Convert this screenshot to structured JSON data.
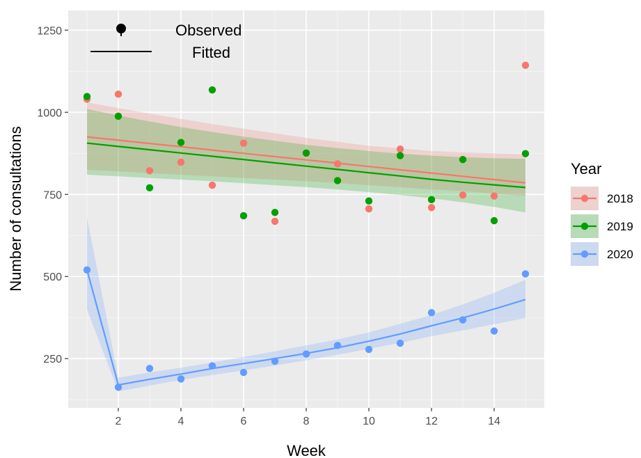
{
  "chart_data": {
    "type": "scatter",
    "xlabel": "Week",
    "ylabel": "Number of consultations",
    "xlim": [
      0.4,
      15.6
    ],
    "ylim": [
      100,
      1310
    ],
    "x_ticks": [
      2,
      4,
      6,
      8,
      10,
      12,
      14
    ],
    "y_ticks": [
      250,
      500,
      750,
      1000,
      1250
    ],
    "grid": true,
    "background": "#ebebeb",
    "legend": {
      "title": "Year",
      "position": "right",
      "entries": [
        "2018",
        "2019",
        "2020"
      ]
    },
    "inset_legend": {
      "position": "top-left",
      "observed_label": "Observed",
      "fitted_label": "Fitted"
    },
    "series": [
      {
        "name": "2018",
        "color": "#f8766d",
        "x": [
          1,
          2,
          3,
          4,
          5,
          6,
          7,
          8,
          9,
          10,
          11,
          12,
          13,
          14,
          15
        ],
        "observed": [
          1040,
          1055,
          822,
          848,
          778,
          906,
          668,
          875,
          843,
          706,
          888,
          710,
          748,
          745,
          1143
        ],
        "fitted": [
          925,
          915,
          905,
          895,
          885,
          875,
          865,
          855,
          845,
          835,
          825,
          815,
          805,
          795,
          785
        ],
        "lower": [
          825,
          820,
          815,
          810,
          805,
          800,
          795,
          790,
          785,
          778,
          772,
          765,
          760,
          752,
          745
        ],
        "upper": [
          1030,
          1013,
          996,
          980,
          964,
          950,
          936,
          922,
          910,
          898,
          890,
          882,
          878,
          875,
          872
        ]
      },
      {
        "name": "2019",
        "color": "#00a000",
        "x": [
          1,
          2,
          3,
          4,
          5,
          6,
          7,
          8,
          9,
          10,
          11,
          12,
          13,
          14,
          15
        ],
        "observed": [
          1048,
          988,
          770,
          908,
          1068,
          685,
          695,
          876,
          792,
          730,
          868,
          734,
          856,
          670,
          874
        ],
        "fitted": [
          906,
          896,
          886,
          876,
          866,
          856,
          846,
          836,
          826,
          816,
          806,
          796,
          787,
          779,
          771
        ],
        "lower": [
          810,
          805,
          800,
          795,
          790,
          784,
          778,
          772,
          765,
          757,
          748,
          738,
          726,
          712,
          695
        ],
        "upper": [
          1010,
          990,
          972,
          955,
          940,
          926,
          913,
          901,
          891,
          882,
          874,
          868,
          863,
          860,
          858
        ]
      },
      {
        "name": "2020",
        "color": "#619cff",
        "x": [
          1,
          2,
          3,
          4,
          5,
          6,
          7,
          8,
          9,
          10,
          11,
          12,
          13,
          14,
          15
        ],
        "observed": [
          520,
          163,
          220,
          188,
          228,
          208,
          242,
          264,
          290,
          278,
          297,
          390,
          368,
          334,
          508
        ],
        "fitted": [
          520,
          170,
          187,
          203,
          220,
          235,
          250,
          266,
          283,
          303,
          325,
          350,
          374,
          401,
          430
        ],
        "lower": [
          400,
          150,
          168,
          185,
          200,
          214,
          229,
          245,
          262,
          280,
          298,
          318,
          336,
          355,
          374
        ],
        "upper": [
          680,
          192,
          208,
          222,
          238,
          255,
          272,
          290,
          308,
          330,
          356,
          383,
          415,
          450,
          490
        ]
      }
    ]
  }
}
